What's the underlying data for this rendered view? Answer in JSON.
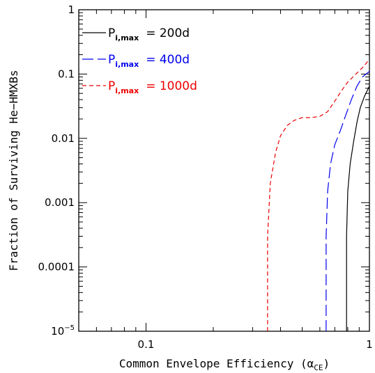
{
  "chart_data": {
    "type": "line",
    "title": "",
    "xlabel": "Common Envelope Efficiency (α",
    "xlabel_sub": "CE",
    "xlabel_close": ")",
    "ylabel": "Fraction of Surviving He−HMXBs",
    "xscale": "log",
    "yscale": "log",
    "xlim": [
      0.05,
      1
    ],
    "ylim": [
      1e-05,
      1
    ],
    "x_tick_labels": [
      {
        "value": 0.1,
        "label": "0.1"
      },
      {
        "value": 1,
        "label": "1"
      }
    ],
    "y_tick_labels": [
      {
        "value": 1,
        "label": "1"
      },
      {
        "value": 0.1,
        "label": "0.1"
      },
      {
        "value": 0.01,
        "label": "0.01"
      },
      {
        "value": 0.001,
        "label": "0.001"
      },
      {
        "value": 0.0001,
        "label": "0.0001"
      }
    ],
    "y_min_label": {
      "base": "10",
      "exp": "−5"
    },
    "legend_position": "top-left",
    "series": [
      {
        "name": "P",
        "name_sub": "i,max",
        "name_value": "= 200d",
        "color": "#000000",
        "dash": "solid",
        "x": [
          0.79,
          0.79,
          0.8,
          0.82,
          0.85,
          0.88,
          0.91,
          0.95,
          1.0
        ],
        "y": [
          1e-05,
          0.0003,
          0.0015,
          0.004,
          0.009,
          0.018,
          0.03,
          0.045,
          0.065
        ]
      },
      {
        "name": "P",
        "name_sub": "i,max",
        "name_value": "= 400d",
        "color": "#0000ee",
        "dash": "dashed",
        "x": [
          0.64,
          0.64,
          0.65,
          0.67,
          0.7,
          0.74,
          0.78,
          0.83,
          0.88,
          0.93,
          1.0
        ],
        "y": [
          1e-05,
          0.0003,
          0.0015,
          0.004,
          0.008,
          0.013,
          0.022,
          0.04,
          0.065,
          0.09,
          0.11
        ]
      },
      {
        "name": "P",
        "name_sub": "i,max",
        "name_value": "= 1000d",
        "color": "#ee0000",
        "dash": "dotted",
        "x": [
          0.35,
          0.35,
          0.36,
          0.38,
          0.4,
          0.43,
          0.46,
          0.5,
          0.55,
          0.6,
          0.65,
          0.7,
          0.75,
          0.8,
          0.87,
          0.94,
          1.0
        ],
        "y": [
          1e-05,
          0.0003,
          0.002,
          0.006,
          0.011,
          0.016,
          0.019,
          0.021,
          0.021,
          0.022,
          0.026,
          0.038,
          0.055,
          0.075,
          0.1,
          0.13,
          0.17
        ]
      }
    ]
  }
}
